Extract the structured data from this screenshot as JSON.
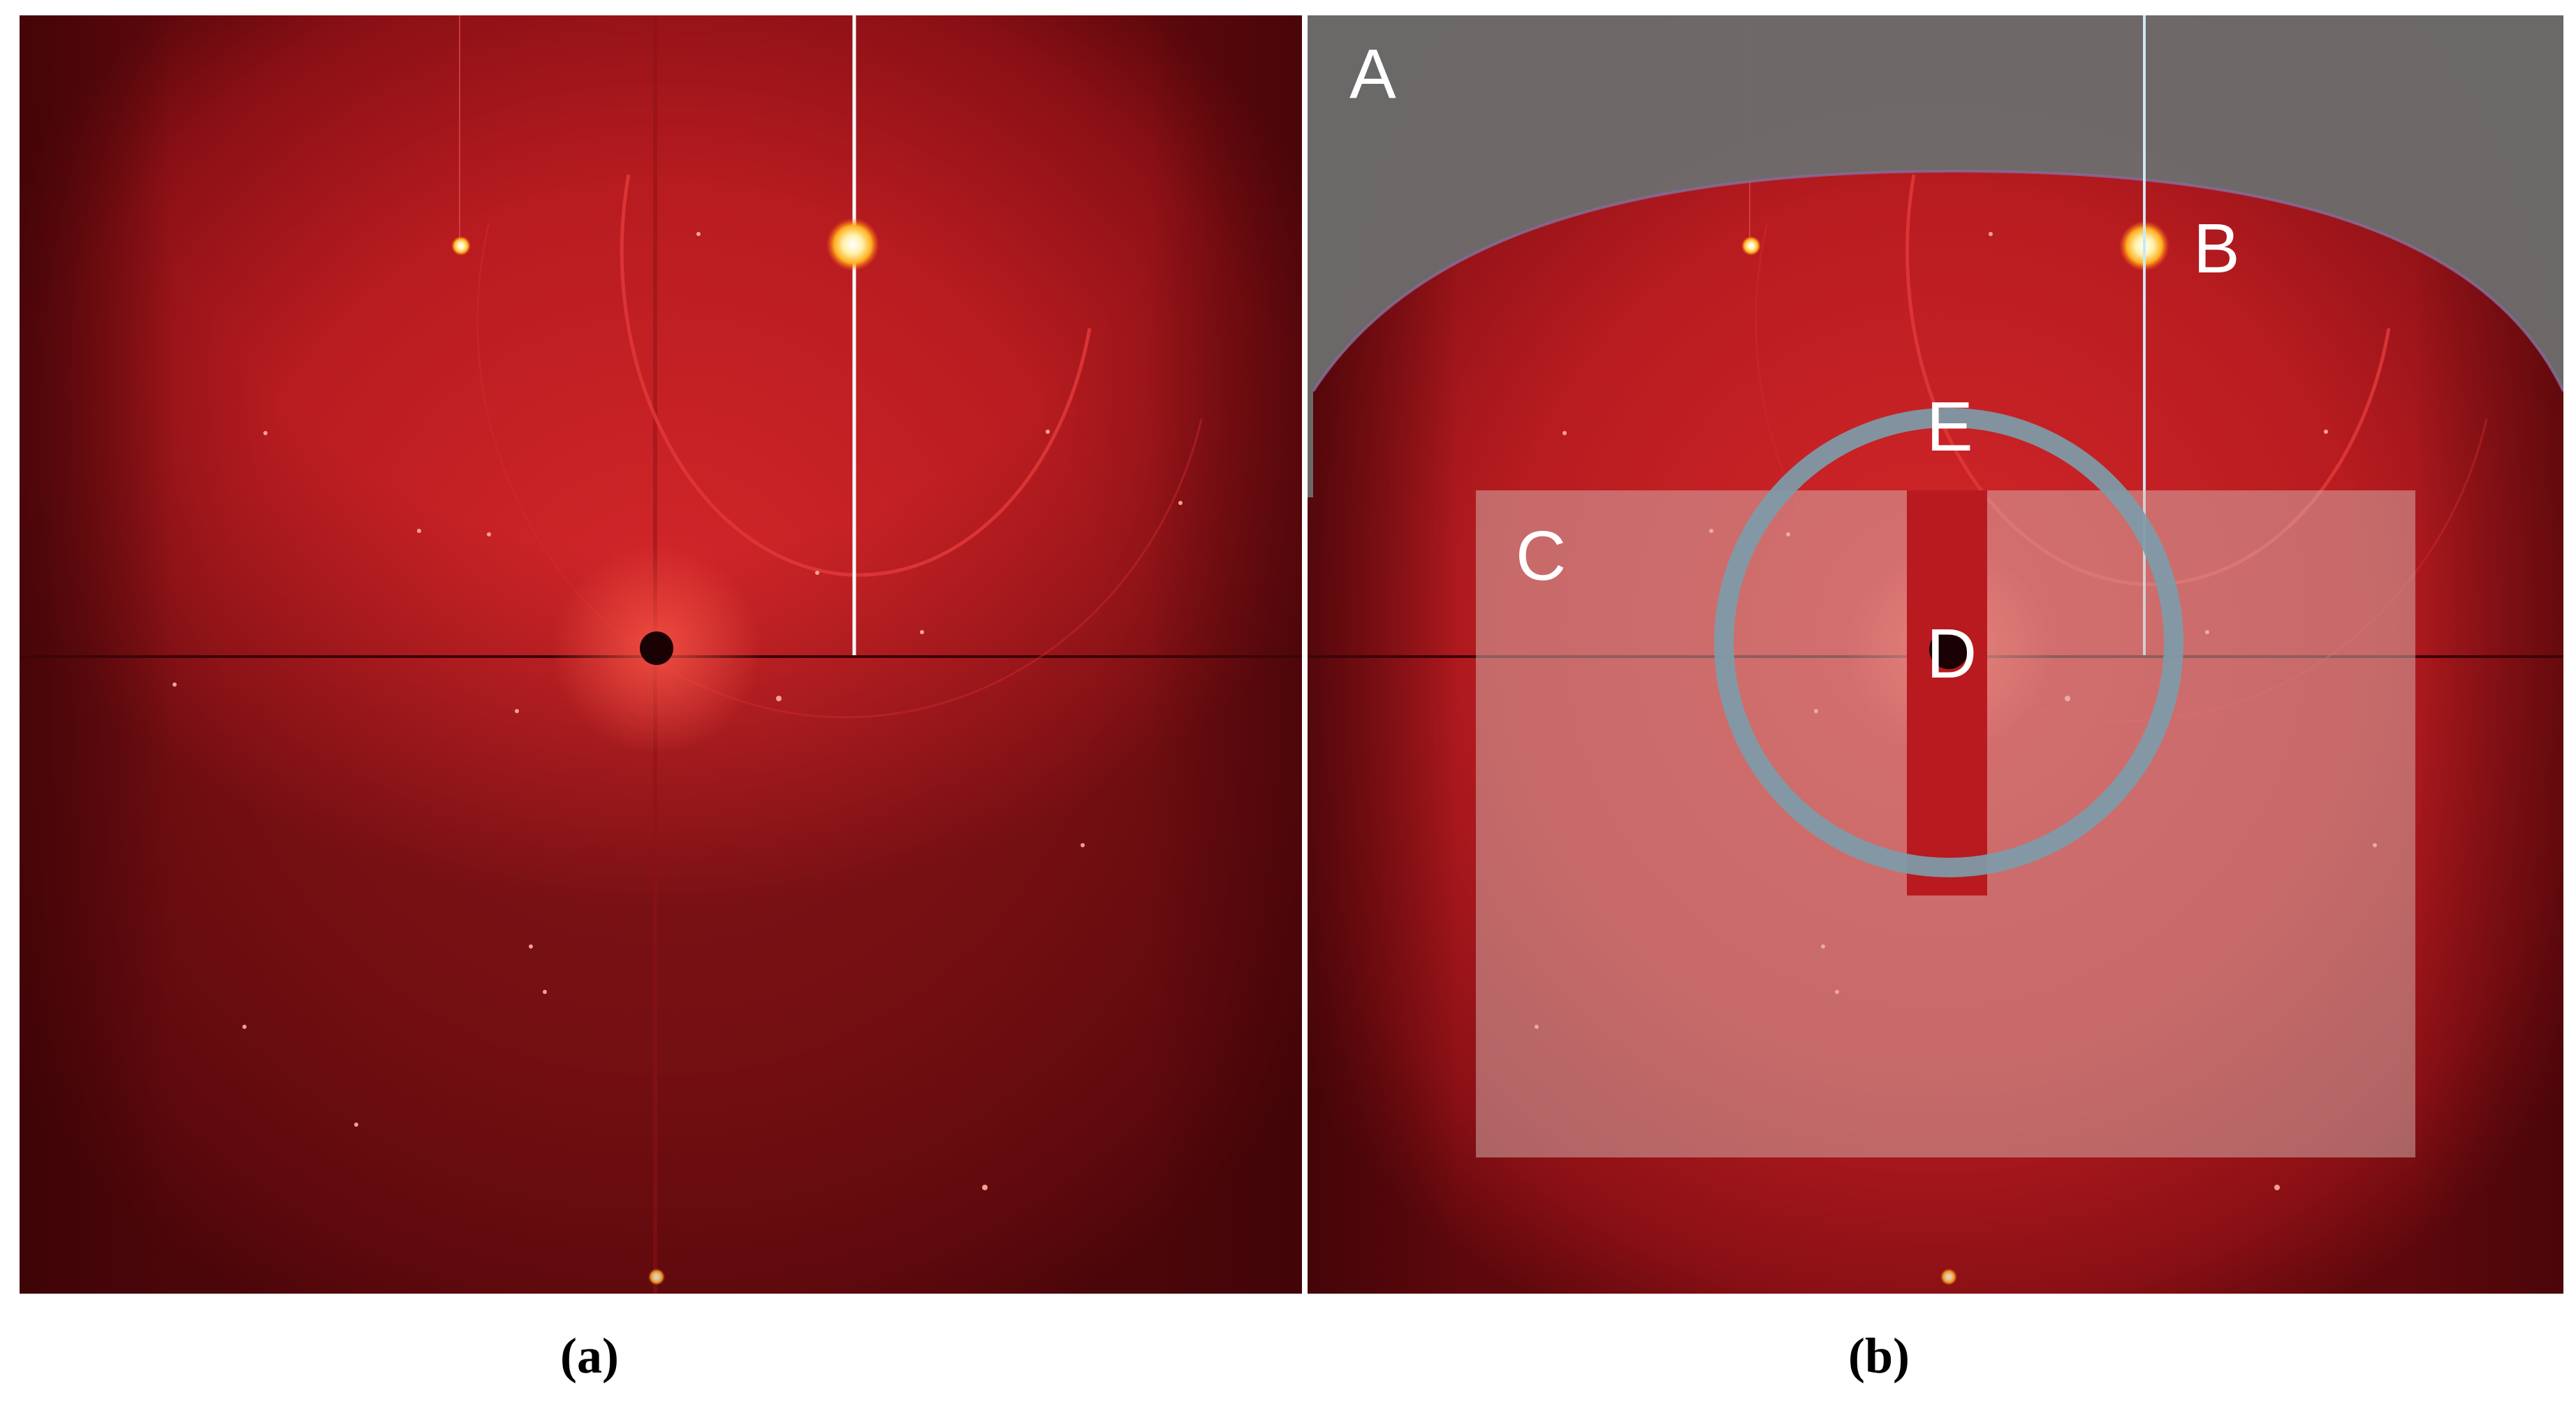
{
  "panels": [
    {
      "caption": "(a)"
    },
    {
      "caption": "(b)",
      "labels": [
        "A",
        "B",
        "C",
        "D",
        "E"
      ]
    }
  ],
  "colors": {
    "detector_red": "#b01a1e",
    "detector_dark": "#5e0a0e",
    "mask_gray": "#6a6a6a",
    "ring_blue": "#7a9aa8",
    "overlay_pale": "#c9a6a2"
  }
}
